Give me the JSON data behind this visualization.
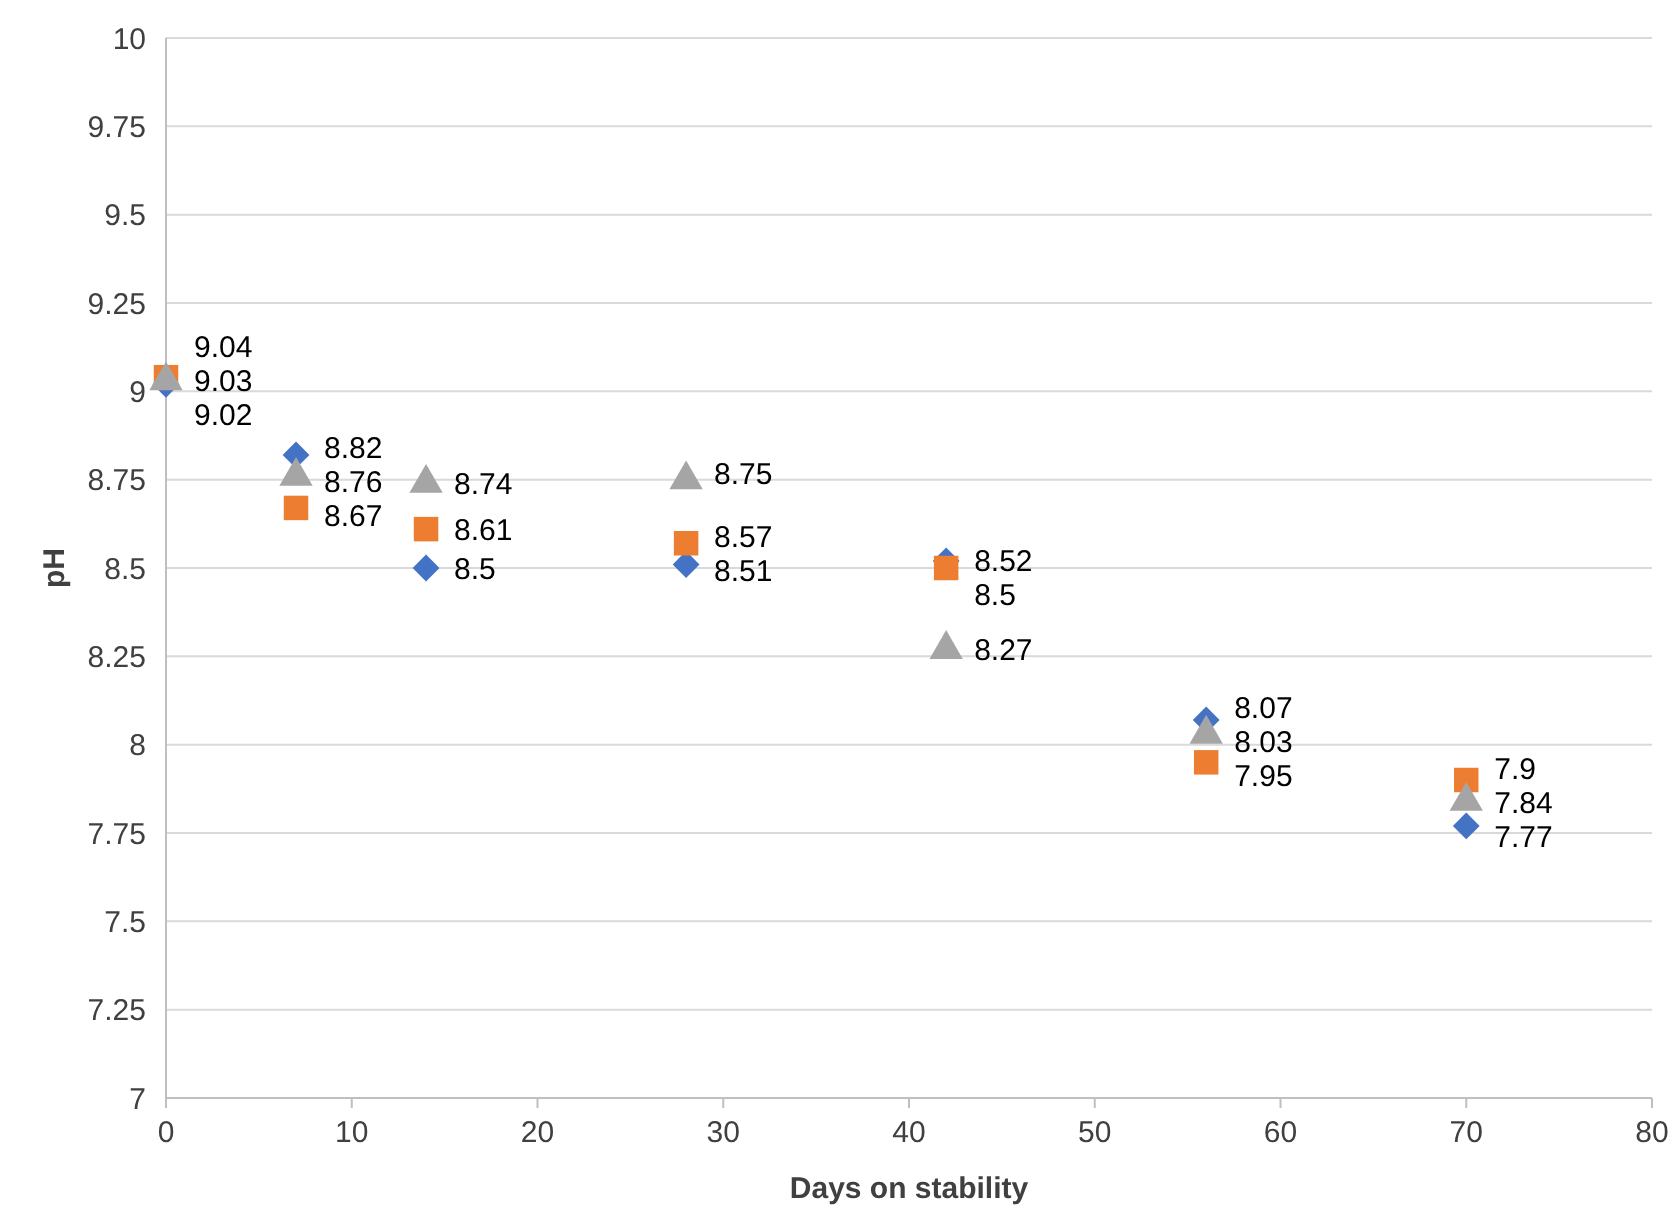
{
  "chart_data": {
    "type": "scatter",
    "xlabel": "Days on stability",
    "ylabel": "pH",
    "xlim": [
      0,
      80
    ],
    "xticks": [
      0,
      10,
      20,
      30,
      40,
      50,
      60,
      70,
      80
    ],
    "ylim": [
      7,
      10
    ],
    "yticks": [
      7,
      7.25,
      7.5,
      7.75,
      8,
      8.25,
      8.5,
      8.75,
      9,
      9.25,
      9.5,
      9.75,
      10
    ],
    "grid": "y",
    "data_labels": true,
    "series": [
      {
        "color": "#4472c4",
        "marker": "diamond",
        "x": [
          0,
          7,
          14,
          28,
          42,
          56,
          70
        ],
        "values": [
          9.02,
          8.82,
          8.5,
          8.51,
          8.52,
          8.07,
          7.77
        ]
      },
      {
        "color": "#ed7d31",
        "marker": "square",
        "x": [
          0,
          7,
          14,
          28,
          42,
          56,
          70
        ],
        "values": [
          9.04,
          8.67,
          8.61,
          8.57,
          8.5,
          7.95,
          7.9
        ]
      },
      {
        "color": "#a5a5a5",
        "marker": "triangle",
        "x": [
          0,
          7,
          14,
          28,
          42,
          56,
          70
        ],
        "values": [
          9.03,
          8.76,
          8.74,
          8.75,
          8.27,
          8.03,
          7.84
        ]
      }
    ]
  }
}
